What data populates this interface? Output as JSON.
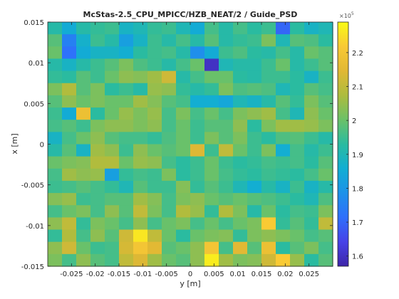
{
  "chart_data": {
    "type": "heatmap",
    "title": "McStas-2.5_CPU_MPICC/HZB_NEAT/2 / Guide_PSD",
    "xlabel": "y [m]",
    "ylabel": "x [m]",
    "xlim": [
      -0.03,
      0.03
    ],
    "ylim": [
      -0.015,
      0.015
    ],
    "x_ticks": [
      -0.025,
      -0.02,
      -0.015,
      -0.01,
      -0.005,
      0,
      0.005,
      0.01,
      0.015,
      0.02,
      0.025
    ],
    "x_tick_labels": [
      "-0.025",
      "-0.02",
      "-0.015",
      "-0.01",
      "-0.005",
      "0",
      "0.005",
      "0.01",
      "0.015",
      "0.02",
      "0.025"
    ],
    "y_ticks": [
      -0.015,
      -0.01,
      -0.005,
      0,
      0.005,
      0.01,
      0.015
    ],
    "y_tick_labels": [
      "-0.015",
      "-0.01",
      "-0.005",
      "0",
      "0.005",
      "0.01",
      "0.015"
    ],
    "colorbar": {
      "range": [
        1.57,
        2.29
      ],
      "multiplier": "×10",
      "exponent": "5",
      "ticks": [
        1.6,
        1.7,
        1.8,
        1.9,
        2.0,
        2.1,
        2.2
      ],
      "tick_labels": [
        "1.6",
        "1.7",
        "1.8",
        "1.9",
        "2",
        "2.1",
        "2.2"
      ],
      "colormap": "parula"
    },
    "grid": false,
    "rows": 20,
    "cols": 20,
    "row_order": "top-to-bottom",
    "values": [
      [
        1.92,
        1.85,
        1.92,
        1.94,
        1.95,
        1.88,
        1.9,
        1.94,
        1.95,
        1.9,
        1.85,
        1.96,
        1.92,
        1.96,
        1.93,
        1.95,
        1.7,
        1.93,
        1.88,
        1.9
      ],
      [
        1.98,
        1.75,
        1.87,
        1.95,
        1.92,
        1.82,
        1.88,
        1.95,
        1.92,
        1.96,
        1.92,
        1.98,
        1.92,
        1.94,
        1.95,
        2.02,
        1.9,
        1.98,
        1.97,
        1.93
      ],
      [
        2.0,
        1.72,
        1.85,
        1.88,
        1.88,
        1.86,
        1.93,
        1.95,
        1.96,
        1.92,
        1.78,
        1.85,
        1.95,
        1.97,
        1.93,
        1.92,
        1.96,
        1.92,
        2.0,
        1.98
      ],
      [
        1.92,
        1.88,
        1.92,
        1.95,
        1.98,
        2.02,
        1.97,
        1.95,
        1.92,
        1.96,
        2.0,
        1.6,
        1.9,
        1.92,
        1.92,
        1.95,
        2.0,
        1.92,
        1.95,
        1.98
      ],
      [
        1.94,
        1.93,
        1.98,
        1.95,
        2.0,
        2.04,
        2.03,
        2.06,
        2.12,
        1.92,
        1.96,
        2.0,
        2.0,
        1.93,
        1.92,
        1.95,
        1.95,
        1.93,
        1.88,
        1.95
      ],
      [
        2.02,
        2.08,
        1.98,
        2.02,
        1.93,
        1.95,
        1.92,
        2.05,
        2.04,
        1.94,
        1.92,
        1.94,
        2.02,
        1.97,
        1.98,
        1.97,
        1.9,
        1.93,
        1.98,
        1.96
      ],
      [
        1.98,
        2.04,
        2.0,
        2.02,
        2.0,
        2.0,
        2.06,
        2.03,
        1.98,
        1.96,
        1.86,
        1.86,
        1.84,
        1.9,
        1.88,
        1.92,
        1.98,
        1.94,
        2.02,
        1.98
      ],
      [
        1.95,
        1.85,
        2.18,
        1.93,
        2.0,
        2.05,
        2.02,
        2.05,
        1.96,
        2.02,
        1.96,
        2.0,
        1.96,
        2.02,
        2.04,
        2.06,
        1.96,
        1.9,
        2.04,
        2.0
      ],
      [
        1.96,
        1.98,
        1.95,
        2.02,
        2.04,
        2.04,
        2.02,
        2.04,
        1.96,
        2.0,
        1.95,
        1.98,
        1.98,
        2.04,
        1.93,
        2.02,
        2.06,
        2.06,
        2.05,
        2.02
      ],
      [
        1.88,
        1.96,
        2.0,
        2.04,
        1.98,
        1.96,
        1.96,
        1.94,
        1.97,
        2.0,
        1.95,
        2.02,
        1.98,
        2.02,
        1.95,
        1.93,
        1.97,
        1.98,
        1.95,
        1.92
      ],
      [
        1.92,
        1.98,
        1.88,
        2.06,
        2.04,
        1.95,
        2.04,
        2.0,
        1.98,
        2.0,
        2.14,
        1.95,
        2.1,
        2.0,
        1.95,
        2.02,
        1.86,
        1.96,
        1.92,
        1.95
      ],
      [
        2.0,
        2.02,
        2.03,
        2.08,
        2.08,
        2.0,
        2.05,
        2.04,
        1.96,
        1.93,
        1.95,
        2.0,
        1.95,
        1.93,
        1.94,
        1.96,
        1.95,
        1.96,
        1.93,
        1.98
      ],
      [
        1.96,
        2.06,
        2.04,
        2.05,
        1.82,
        1.94,
        1.96,
        1.95,
        2.02,
        1.93,
        1.95,
        2.0,
        1.96,
        1.94,
        1.93,
        1.95,
        1.94,
        1.93,
        1.96,
        2.0
      ],
      [
        1.95,
        1.96,
        1.98,
        1.96,
        1.94,
        1.9,
        1.98,
        1.95,
        1.95,
        2.03,
        1.94,
        1.98,
        1.95,
        1.9,
        1.86,
        1.92,
        1.88,
        1.95,
        1.88,
        1.92
      ],
      [
        2.03,
        2.05,
        1.95,
        1.96,
        1.98,
        1.98,
        2.06,
        2.03,
        1.96,
        2.02,
        2.04,
        2.0,
        1.98,
        2.0,
        1.98,
        1.97,
        1.95,
        1.93,
        1.9,
        1.97
      ],
      [
        1.96,
        2.0,
        2.02,
        1.96,
        2.04,
        1.98,
        2.1,
        2.02,
        1.96,
        2.08,
        2.05,
        1.94,
        2.08,
        2.02,
        1.92,
        2.0,
        1.93,
        1.96,
        1.95,
        2.02
      ],
      [
        2.04,
        2.1,
        1.94,
        2.02,
        2.0,
        1.96,
        2.04,
        1.96,
        2.0,
        2.02,
        1.96,
        2.0,
        1.96,
        2.0,
        2.02,
        2.22,
        1.94,
        1.98,
        1.94,
        2.1
      ],
      [
        1.94,
        2.08,
        1.96,
        2.04,
        1.98,
        2.12,
        2.26,
        2.1,
        2.0,
        1.93,
        2.0,
        2.02,
        2.03,
        1.94,
        2.02,
        2.04,
        2.02,
        2.0,
        1.96,
        1.98
      ],
      [
        2.04,
        2.12,
        2.0,
        1.95,
        1.96,
        2.13,
        2.2,
        2.15,
        1.98,
        2.0,
        2.04,
        2.2,
        1.96,
        2.15,
        1.98,
        2.18,
        1.93,
        1.98,
        2.02,
        1.96
      ],
      [
        2.02,
        1.96,
        2.04,
        1.98,
        1.96,
        2.1,
        2.14,
        2.06,
        2.0,
        1.98,
        2.04,
        2.27,
        2.06,
        2.02,
        2.03,
        2.12,
        2.22,
        2.05,
        1.93,
        1.98
      ]
    ]
  }
}
